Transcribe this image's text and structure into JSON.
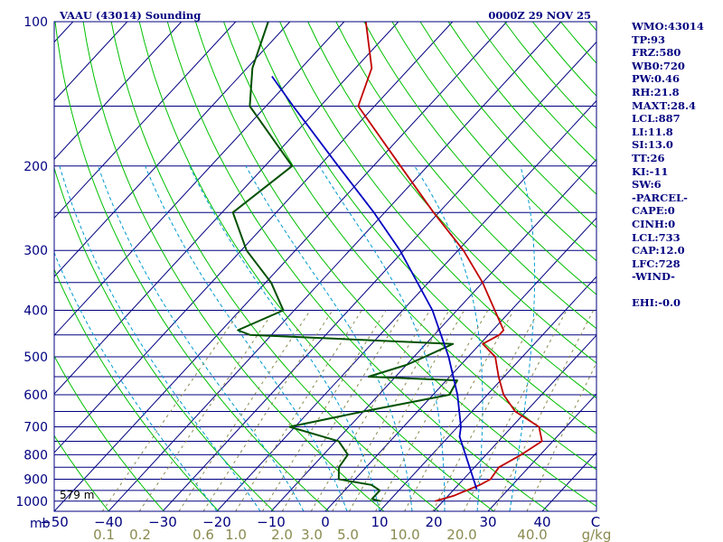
{
  "header": {
    "station": "VAAU (43014) Sounding",
    "time": "0000Z 29 NOV 25"
  },
  "surface_height_label": "579 m",
  "side_panel": [
    "WMO:43014",
    "TP:93",
    "FRZ:580",
    "WB0:720",
    "PW:0.46",
    "RH:21.8",
    "MAXT:28.4",
    "LCL:887",
    "LI:11.8",
    "SI:13.0",
    "TT:26",
    "KI:-11",
    "SW:6",
    "-PARCEL-",
    "CAPE:0",
    "CINH:0",
    "LCL:733",
    "CAP:12.0",
    "LFC:728",
    "-WIND-",
    "",
    "EHI:-0.0"
  ],
  "colors": {
    "background": "#ffffff",
    "frame": "#000080",
    "text": "#000080",
    "isobar": "#000080",
    "isotherm": "#000080",
    "dry_adiabat": "#00c000",
    "moist_adiabat": "#009ad0",
    "mixing_ratio": "#8a8a50",
    "temperature": "#c00000",
    "dewpoint": "#005000",
    "parcel": "#0000c0",
    "mixing_label": "#8a8a50"
  },
  "chart_data": {
    "type": "line",
    "title": "VAAU (43014) Sounding",
    "xlabel": "",
    "ylabel": "mb",
    "yscale": "log",
    "xlim": [
      -50,
      50
    ],
    "ylim": [
      1050,
      100
    ],
    "grid": true,
    "pressure_ticks": [
      100,
      200,
      300,
      400,
      500,
      600,
      700,
      800,
      900,
      1000
    ],
    "isobars_drawn": [
      100,
      150,
      200,
      250,
      300,
      350,
      400,
      450,
      500,
      550,
      600,
      650,
      700,
      750,
      800,
      850,
      900,
      950,
      1000,
      1050
    ],
    "temperature_ticks": [
      -50,
      -40,
      -30,
      -20,
      -10,
      0,
      10,
      20,
      30,
      40
    ],
    "corner_tick_label": "C",
    "mixing_ratio_labels": [
      "0.1",
      "0.2",
      "0.6",
      "1.0",
      "2.0",
      "3.0",
      "5.0",
      "10.0",
      "20.0",
      "40.0"
    ],
    "mixing_ratio_unit": "g/kg",
    "series": [
      {
        "p": [
          1000,
          975,
          950,
          925,
          900,
          850,
          800,
          750,
          700,
          650,
          600,
          550,
          500,
          470,
          450,
          440,
          400,
          350,
          300,
          250,
          200,
          150,
          125,
          100
        ],
        "t": [
          18.5,
          21.0,
          22.5,
          24.0,
          25.0,
          24.5,
          26.5,
          28.0,
          25.0,
          18.0,
          13.0,
          9.0,
          5.0,
          0.5,
          2.0,
          2.0,
          -3.0,
          -10.0,
          -19.0,
          -31.0,
          -45.0,
          -63.0,
          -67.0,
          -76.0
        ]
      },
      {
        "p": [
          1000,
          990,
          950,
          925,
          900,
          850,
          800,
          750,
          700,
          650,
          600,
          560,
          550,
          520,
          500,
          470,
          450,
          440,
          400,
          350,
          300,
          250,
          200,
          150,
          125,
          100
        ],
        "t": [
          8.5,
          6.5,
          6.5,
          4.0,
          -3.0,
          -5.0,
          -5.5,
          -9.5,
          -21.0,
          -10.0,
          3.0,
          2.0,
          -15.0,
          -10.0,
          -8.0,
          -5.0,
          -44.0,
          -47.0,
          -42.0,
          -49.0,
          -59.0,
          -68.0,
          -65.0,
          -83.0,
          -89.0,
          -94.0
        ]
      },
      {
        "p": [
          945,
          733,
          700,
          600,
          500,
          400,
          300,
          250,
          200,
          150,
          130
        ],
        "t": [
          24.2,
          12.0,
          10.6,
          4.5,
          -3.6,
          -14.5,
          -30.7,
          -42.0,
          -56.5,
          -75.0,
          -84.0
        ]
      }
    ]
  }
}
